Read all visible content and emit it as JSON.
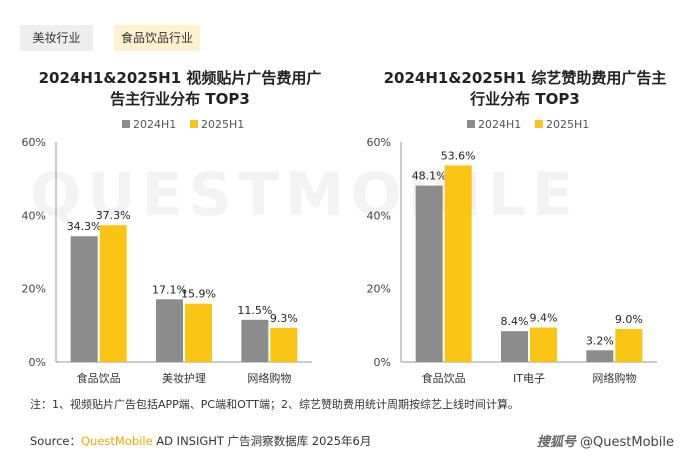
{
  "tabs": [
    {
      "label": "美妆行业"
    },
    {
      "label": "食品饮品行业"
    }
  ],
  "watermark": "QUESTMOBILE",
  "colors": {
    "series1": "#8c8c8c",
    "series2": "#f9c413",
    "active_tab_bg": "#fdf1cf"
  },
  "chart_data": [
    {
      "type": "bar",
      "title_line1": "2024H1&2025H1 视频贴片广告费用广",
      "title_line2": "告主行业分布 TOP3",
      "categories": [
        "食品饮品",
        "美妆护理",
        "网络购物"
      ],
      "series": [
        {
          "name": "2024H1",
          "values": [
            34.3,
            17.1,
            11.5
          ],
          "labels": [
            "34.3%",
            "17.1%",
            "11.5%"
          ]
        },
        {
          "name": "2025H1",
          "values": [
            37.3,
            15.9,
            9.3
          ],
          "labels": [
            "37.3%",
            "15.9%",
            "9.3%"
          ]
        }
      ],
      "yticks": [
        "0%",
        "20%",
        "40%",
        "60%"
      ],
      "ylim": [
        0,
        60
      ],
      "legend": "top-center",
      "grid": false
    },
    {
      "type": "bar",
      "title_line1": "2024H1&2025H1 综艺赞助费用广告主",
      "title_line2": "行业分布 TOP3",
      "categories": [
        "食品饮品",
        "IT电子",
        "网络购物"
      ],
      "series": [
        {
          "name": "2024H1",
          "values": [
            48.1,
            8.4,
            3.2
          ],
          "labels": [
            "48.1%",
            "8.4%",
            "3.2%"
          ]
        },
        {
          "name": "2025H1",
          "values": [
            53.6,
            9.4,
            9.0
          ],
          "labels": [
            "53.6%",
            "9.4%",
            "9.0%"
          ]
        }
      ],
      "yticks": [
        "0%",
        "20%",
        "40%",
        "60%"
      ],
      "ylim": [
        0,
        60
      ],
      "legend": "top-center",
      "grid": false
    }
  ],
  "footnote": "注：1、视频贴片广告包括APP端、PC端和OTT端；2、综艺赞助费用统计周期按综艺上线时间计算。",
  "source": {
    "prefix": "Source：",
    "brand": "QuestMobile",
    "rest": "AD INSIGHT 广告洞察数据库 2025年6月"
  },
  "credit": {
    "platform": "搜狐号",
    "handle": "@QuestMobile"
  }
}
